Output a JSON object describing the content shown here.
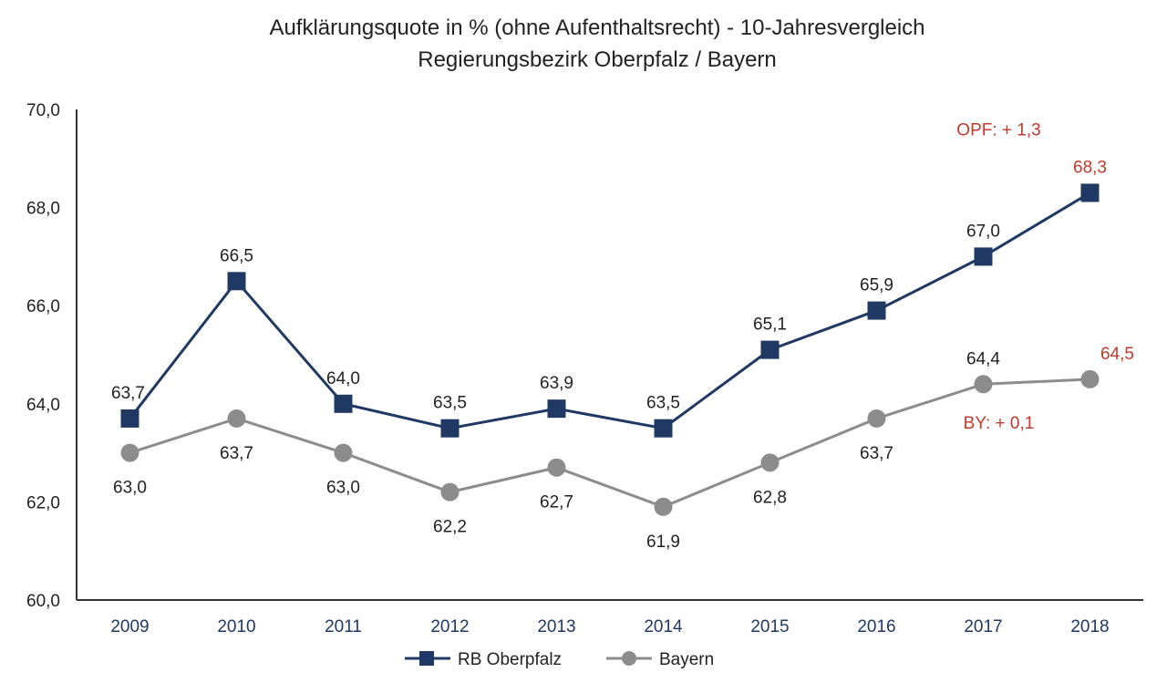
{
  "chart_data": {
    "type": "line",
    "title": "Aufklärungsquote in % (ohne Aufenthaltsrecht) - 10-Jahresvergleich",
    "subtitle": "Regierungsbezirk Oberpfalz / Bayern",
    "xlabel": "",
    "ylabel": "",
    "categories": [
      "2009",
      "2010",
      "2011",
      "2012",
      "2013",
      "2014",
      "2015",
      "2016",
      "2017",
      "2018"
    ],
    "ylim": [
      60,
      70
    ],
    "yticks": [
      60,
      62,
      64,
      66,
      68,
      70
    ],
    "ytick_labels": [
      "60,0",
      "62,0",
      "64,0",
      "66,0",
      "68,0",
      "70,0"
    ],
    "grid": false,
    "legend_position": "bottom",
    "series": [
      {
        "name": "RB Oberpfalz",
        "color": "#1f3864",
        "marker": "square",
        "values": [
          63.7,
          66.5,
          64.0,
          63.5,
          63.9,
          63.5,
          65.1,
          65.9,
          67.0,
          68.3
        ],
        "labels": [
          "63,7",
          "66,5",
          "64,0",
          "63,5",
          "63,9",
          "63,5",
          "65,1",
          "65,9",
          "67,0",
          "68,3"
        ]
      },
      {
        "name": "Bayern",
        "color": "#8c8c8c",
        "marker": "circle",
        "values": [
          63.0,
          63.7,
          63.0,
          62.2,
          62.7,
          61.9,
          62.8,
          63.7,
          64.4,
          64.5
        ],
        "labels": [
          "63,0",
          "63,7",
          "63,0",
          "62,2",
          "62,7",
          "61,9",
          "62,8",
          "63,7",
          "64,4",
          "64,5"
        ]
      }
    ],
    "annotations": [
      {
        "text": "OPF: + 1,3",
        "series": 0,
        "index": 9
      },
      {
        "text": "BY: + 0,1",
        "series": 1,
        "index": 9
      }
    ],
    "highlight_color": "#c0392b"
  }
}
